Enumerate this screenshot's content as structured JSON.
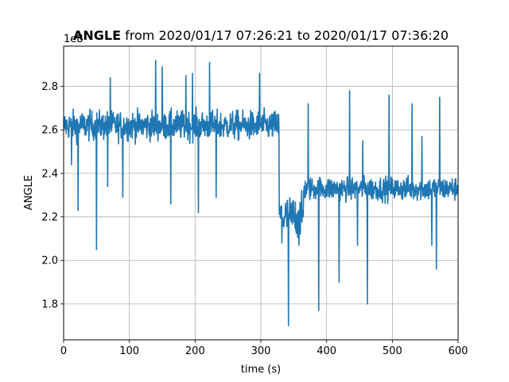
{
  "chart_data": {
    "type": "line",
    "title": {
      "bold_part": "ANGLE",
      "rest": " from 2020/01/17 07:26:21 to 2020/01/17 07:36:20"
    },
    "xlabel": "time (s)",
    "ylabel": "ANGLE",
    "offset_text": "1e8",
    "xlim": [
      0,
      600
    ],
    "ylim": [
      1.635,
      2.985
    ],
    "x_ticks": [
      0,
      100,
      200,
      300,
      400,
      500,
      600
    ],
    "y_ticks": [
      1.8,
      2.0,
      2.2,
      2.4,
      2.6,
      2.8
    ],
    "grid": true,
    "line_color": "#1f77b4",
    "series": [
      {
        "segments": [
          {
            "x_start": 0,
            "x_end": 328,
            "baseline": 2.62,
            "noise": 0.055
          },
          {
            "x_start": 328,
            "x_end": 365,
            "baseline": 2.2,
            "noise": 0.08
          },
          {
            "x_start": 365,
            "x_end": 600,
            "baseline": 2.33,
            "noise": 0.045
          }
        ],
        "spikes": [
          [
            12,
            2.44
          ],
          [
            22,
            2.23
          ],
          [
            50,
            2.05
          ],
          [
            67,
            2.34
          ],
          [
            71,
            2.84
          ],
          [
            90,
            2.29
          ],
          [
            140,
            2.92
          ],
          [
            150,
            2.89
          ],
          [
            163,
            2.26
          ],
          [
            186,
            2.85
          ],
          [
            196,
            2.86
          ],
          [
            205,
            2.22
          ],
          [
            222,
            2.91
          ],
          [
            232,
            2.29
          ],
          [
            298,
            2.86
          ],
          [
            332,
            2.08
          ],
          [
            342,
            1.7
          ],
          [
            358,
            2.07
          ],
          [
            372,
            2.08
          ],
          [
            372,
            2.72
          ],
          [
            388,
            1.77
          ],
          [
            419,
            1.9
          ],
          [
            435,
            2.78
          ],
          [
            447,
            2.07
          ],
          [
            455,
            2.55
          ],
          [
            462,
            1.8
          ],
          [
            495,
            2.76
          ],
          [
            509,
            2.3
          ],
          [
            530,
            2.72
          ],
          [
            545,
            2.57
          ],
          [
            560,
            2.07
          ],
          [
            567,
            1.96
          ],
          [
            572,
            2.75
          ]
        ]
      }
    ]
  }
}
